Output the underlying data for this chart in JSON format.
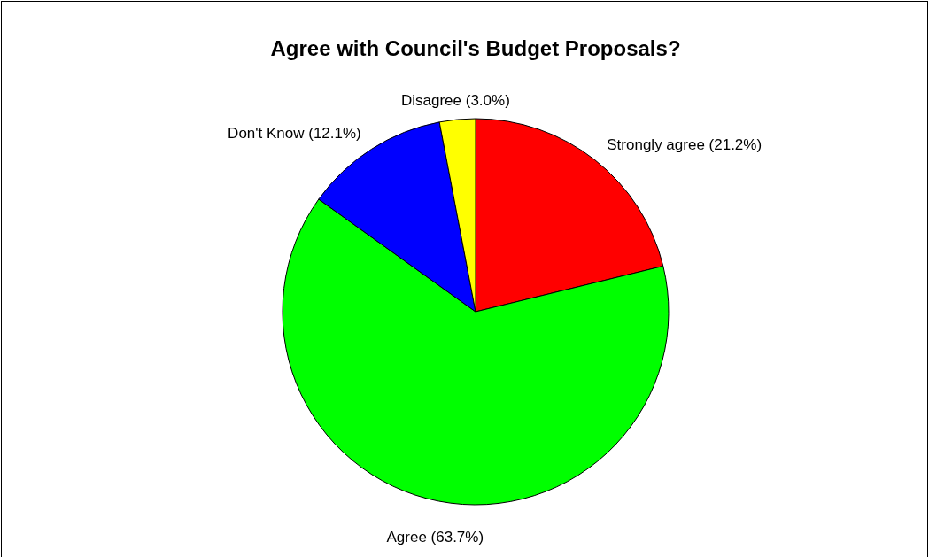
{
  "chart_data": {
    "type": "pie",
    "title": "Agree with Council's Budget Proposals?",
    "categories": [
      "Strongly agree",
      "Agree",
      "Don't Know",
      "Disagree"
    ],
    "values": [
      21.2,
      63.7,
      12.1,
      3.0
    ],
    "value_labels": [
      "(21.2%)",
      "(63.7%)",
      "(12.1%)",
      "(3.0%)"
    ],
    "colors": [
      "#ff0000",
      "#00ff00",
      "#0000ff",
      "#ffff00"
    ]
  }
}
